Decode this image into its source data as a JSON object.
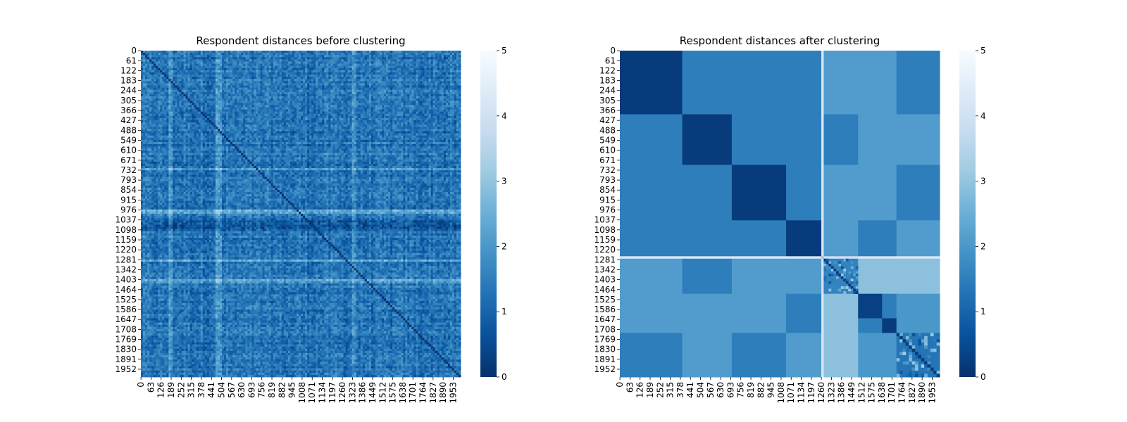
{
  "chart_data": [
    {
      "type": "heatmap",
      "title": "Respondent distances before clustering",
      "colormap": "Blues_r",
      "vmin": 0,
      "vmax": 5,
      "x_tick_labels": [
        "0",
        "63",
        "126",
        "189",
        "252",
        "315",
        "378",
        "441",
        "504",
        "567",
        "630",
        "693",
        "756",
        "819",
        "882",
        "945",
        "1008",
        "1071",
        "1134",
        "1197",
        "1260",
        "1323",
        "1386",
        "1449",
        "1512",
        "1575",
        "1638",
        "1701",
        "1764",
        "1827",
        "1890",
        "1953"
      ],
      "y_tick_labels": [
        "0",
        "61",
        "122",
        "183",
        "244",
        "305",
        "366",
        "427",
        "488",
        "549",
        "610",
        "671",
        "732",
        "793",
        "854",
        "915",
        "976",
        "1037",
        "1098",
        "1159",
        "1220",
        "1281",
        "1342",
        "1403",
        "1464",
        "1525",
        "1586",
        "1647",
        "1708",
        "1769",
        "1830",
        "1891",
        "1952"
      ],
      "colorbar_ticks": [
        "0",
        "1",
        "2",
        "3",
        "4",
        "5"
      ],
      "n": 2000,
      "typical_distance": 1.3,
      "light_row_bands": [
        720,
        975,
        1280,
        1410
      ],
      "dark_row_band": [
        1037,
        1100
      ],
      "light_col_bands": [
        180,
        480,
        1330
      ]
    },
    {
      "type": "heatmap",
      "title": "Respondent distances after clustering",
      "colormap": "Blues_r",
      "vmin": 0,
      "vmax": 5,
      "x_tick_labels": [
        "0",
        "63",
        "126",
        "189",
        "252",
        "315",
        "378",
        "441",
        "504",
        "567",
        "630",
        "693",
        "756",
        "819",
        "882",
        "945",
        "1008",
        "1071",
        "1134",
        "1197",
        "1260",
        "1323",
        "1386",
        "1449",
        "1512",
        "1575",
        "1638",
        "1701",
        "1764",
        "1827",
        "1890",
        "1953"
      ],
      "y_tick_labels": [
        "0",
        "61",
        "122",
        "183",
        "244",
        "305",
        "366",
        "427",
        "488",
        "549",
        "610",
        "671",
        "732",
        "793",
        "854",
        "915",
        "976",
        "1037",
        "1098",
        "1159",
        "1220",
        "1281",
        "1342",
        "1403",
        "1464",
        "1525",
        "1586",
        "1647",
        "1708",
        "1769",
        "1830",
        "1891",
        "1952"
      ],
      "colorbar_ticks": [
        "0",
        "1",
        "2",
        "3",
        "4",
        "5"
      ],
      "n": 2000,
      "clusters": [
        {
          "start": 0,
          "end": 390
        },
        {
          "start": 390,
          "end": 700
        },
        {
          "start": 700,
          "end": 1040
        },
        {
          "start": 1040,
          "end": 1260
        },
        {
          "start": 1260,
          "end": 1275
        },
        {
          "start": 1275,
          "end": 1490
        },
        {
          "start": 1490,
          "end": 1640
        },
        {
          "start": 1640,
          "end": 1730
        },
        {
          "start": 1730,
          "end": 2000
        }
      ],
      "within_cluster_distance": 0.2,
      "between_cluster_distances": [
        [
          0.2,
          1.5,
          1.5,
          1.5,
          4.2,
          2.1,
          2.1,
          2.1,
          1.5
        ],
        [
          1.5,
          0.2,
          1.5,
          1.5,
          4.2,
          1.5,
          2.1,
          2.1,
          2.1
        ],
        [
          1.5,
          1.5,
          0.2,
          1.5,
          4.2,
          2.1,
          2.1,
          2.1,
          1.5
        ],
        [
          1.5,
          1.5,
          1.5,
          0.2,
          4.2,
          2.1,
          1.5,
          1.5,
          2.1
        ],
        [
          4.2,
          4.2,
          4.2,
          4.2,
          3.0,
          4.0,
          4.2,
          4.2,
          4.2
        ],
        [
          2.1,
          1.5,
          2.1,
          2.1,
          4.0,
          1.6,
          2.9,
          2.9,
          2.9
        ],
        [
          2.1,
          2.1,
          2.1,
          1.5,
          4.2,
          2.9,
          0.3,
          1.5,
          2.0
        ],
        [
          2.1,
          2.1,
          2.1,
          1.5,
          4.2,
          2.9,
          1.5,
          0.2,
          2.0
        ],
        [
          1.5,
          2.1,
          1.5,
          2.1,
          4.2,
          2.9,
          2.0,
          2.0,
          1.3
        ]
      ]
    }
  ]
}
